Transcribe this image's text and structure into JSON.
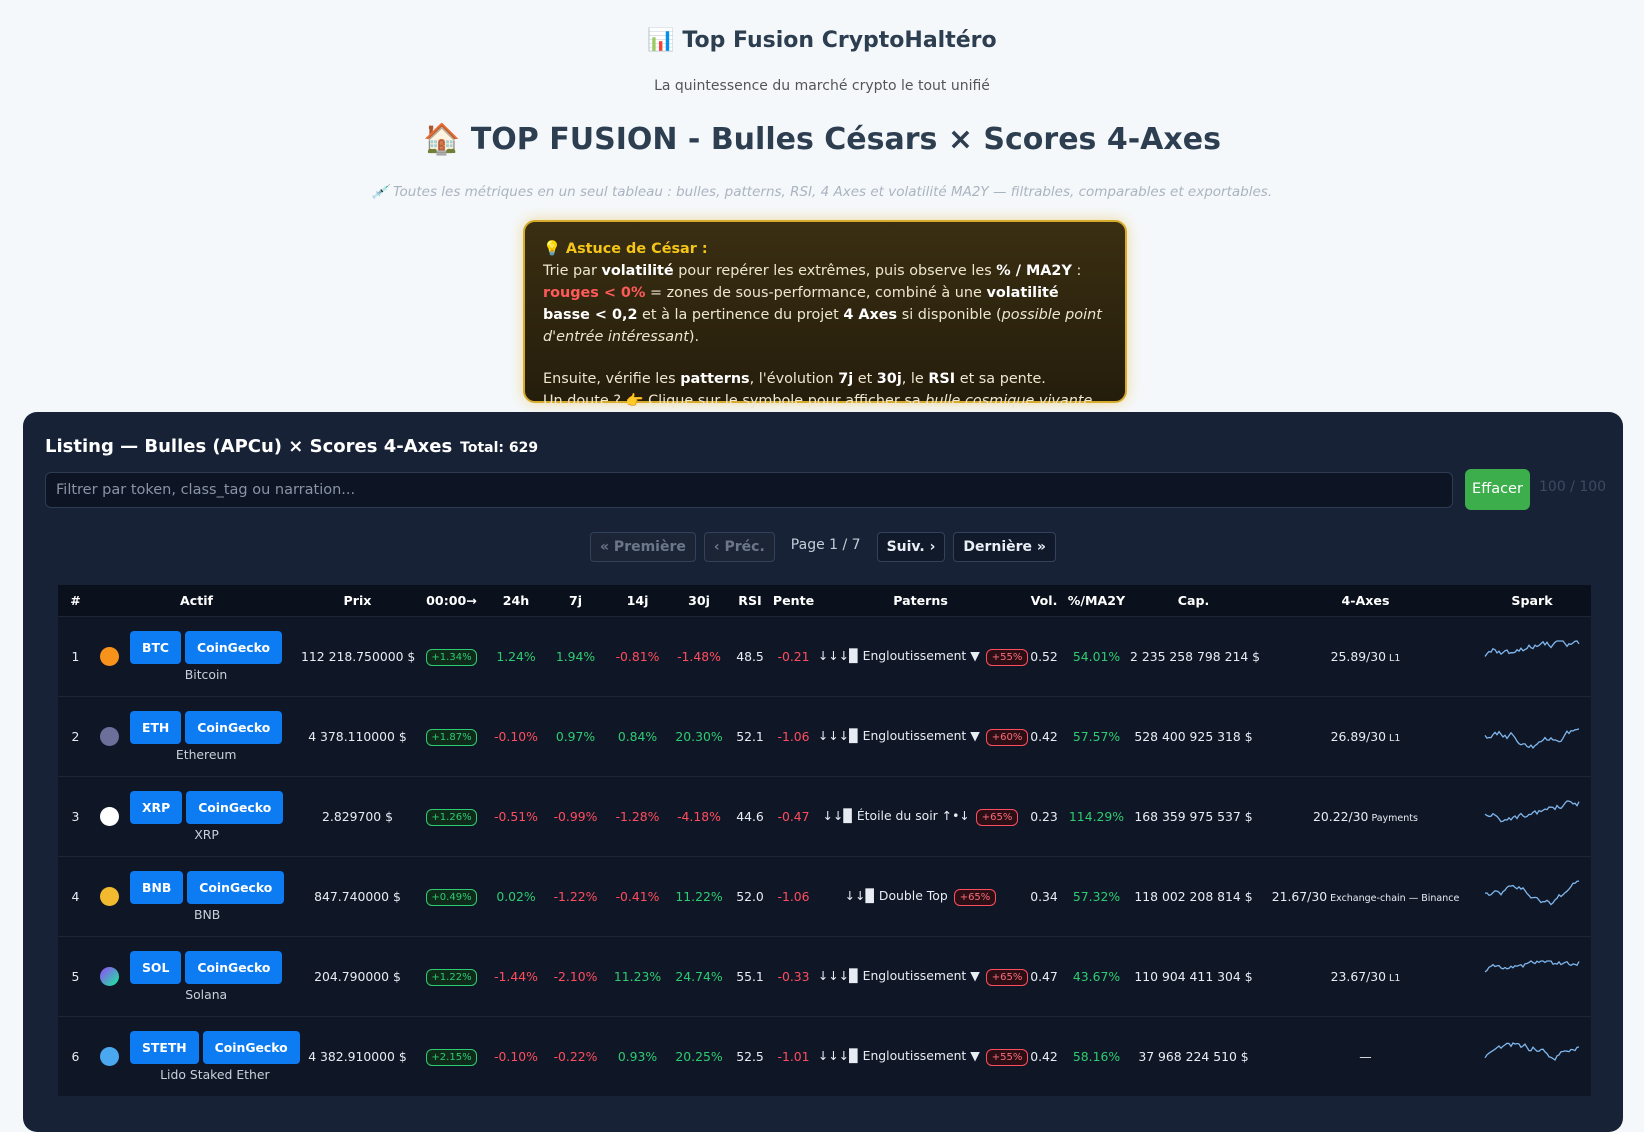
{
  "header": {
    "title": "📊 Top Fusion CryptoHaltéro",
    "subtitle": "La quintessence du marché crypto le tout unifié",
    "heading": "🏠 TOP FUSION - Bulles Césars × Scores 4-Axes",
    "tagline": "💉 Toutes les métriques en un seul tableau : bulles, patterns, RSI, 4 Axes et volatilité MA2Y — filtrables, comparables et exportables."
  },
  "tip": {
    "title": "💡 Astuce de César :",
    "line1": [
      "Trie par ",
      "volatilité",
      " pour repérer les extrêmes, puis observe les ",
      "% / MA2Y",
      " : ",
      "rouges < 0%",
      " = zones de sous-performance, combiné à une ",
      "volatilité basse < 0,2",
      " et à la pertinence du projet ",
      "4 Axes",
      " si disponible (",
      "possible point d'entrée intéressant",
      ")."
    ],
    "line2": [
      "Ensuite, vérifie les ",
      "patterns",
      ", l'évolution ",
      "7j",
      " et ",
      "30j",
      ", le ",
      "RSI",
      " et sa pente."
    ],
    "line3": [
      "Un doute ? 👉 Clique sur le symbole pour afficher sa ",
      "bulle cosmique vivante 🌌",
      "."
    ]
  },
  "panel": {
    "title": "Listing — Bulles (APCu) × Scores 4-Axes",
    "total": "Total: 629",
    "filter_placeholder": "Filtrer par token, class_tag ou narration...",
    "clear_button": "Effacer",
    "count": "100 / 100",
    "pagination": {
      "first": "« Première",
      "prev": "‹ Préc.",
      "page": "Page 1 / 7",
      "next": "Suiv. ›",
      "last": "Dernière »"
    }
  },
  "table": {
    "headers": [
      "#",
      "Actif",
      "Prix",
      "00:00→",
      "24h",
      "7j",
      "14j",
      "30j",
      "RSI",
      "Pente",
      "Paterns",
      "Vol.",
      "%/MA2Y",
      "Cap.",
      "4-Axes",
      "Spark"
    ],
    "rows": [
      {
        "rank": "1",
        "symbol": "BTC",
        "source": "CoinGecko",
        "name": "Bitcoin",
        "price": "112 218.750000 $",
        "since_midnight": "+1.34%",
        "h24": "1.24%",
        "d7": "1.94%",
        "d14": "-0.81%",
        "d30": "-1.48%",
        "rsi": "48.5",
        "slope": "-0.21",
        "pattern": "↓↓↓▉ Engloutissement ▼",
        "pattern_badge": "+55%",
        "vol": "0.52",
        "ma2y": "54.01%",
        "cap": "2 235 258 798 214 $",
        "axes": "25.89/30",
        "axes_tag": "L1"
      },
      {
        "rank": "2",
        "symbol": "ETH",
        "source": "CoinGecko",
        "name": "Ethereum",
        "price": "4 378.110000 $",
        "since_midnight": "+1.87%",
        "h24": "-0.10%",
        "d7": "0.97%",
        "d14": "0.84%",
        "d30": "20.30%",
        "rsi": "52.1",
        "slope": "-1.06",
        "pattern": "↓↓↓▉ Engloutissement ▼",
        "pattern_badge": "+60%",
        "vol": "0.42",
        "ma2y": "57.57%",
        "cap": "528 400 925 318 $",
        "axes": "26.89/30",
        "axes_tag": "L1"
      },
      {
        "rank": "3",
        "symbol": "XRP",
        "source": "CoinGecko",
        "name": "XRP",
        "price": "2.829700 $",
        "since_midnight": "+1.26%",
        "h24": "-0.51%",
        "d7": "-0.99%",
        "d14": "-1.28%",
        "d30": "-4.18%",
        "rsi": "44.6",
        "slope": "-0.47",
        "pattern": "↓↓▉ Étoile du soir ↑•↓",
        "pattern_badge": "+65%",
        "vol": "0.23",
        "ma2y": "114.29%",
        "cap": "168 359 975 537 $",
        "axes": "20.22/30",
        "axes_tag": "Payments"
      },
      {
        "rank": "4",
        "symbol": "BNB",
        "source": "CoinGecko",
        "name": "BNB",
        "price": "847.740000 $",
        "since_midnight": "+0.49%",
        "h24": "0.02%",
        "d7": "-1.22%",
        "d14": "-0.41%",
        "d30": "11.22%",
        "rsi": "52.0",
        "slope": "-1.06",
        "pattern": "↓↓▉ Double Top",
        "pattern_badge": "+65%",
        "vol": "0.34",
        "ma2y": "57.32%",
        "cap": "118 002 208 814 $",
        "axes": "21.67/30",
        "axes_tag": "Exchange-chain — Binance"
      },
      {
        "rank": "5",
        "symbol": "SOL",
        "source": "CoinGecko",
        "name": "Solana",
        "price": "204.790000 $",
        "since_midnight": "+1.22%",
        "h24": "-1.44%",
        "d7": "-2.10%",
        "d14": "11.23%",
        "d30": "24.74%",
        "rsi": "55.1",
        "slope": "-0.33",
        "pattern": "↓↓↓▉ Engloutissement ▼",
        "pattern_badge": "+65%",
        "vol": "0.47",
        "ma2y": "43.67%",
        "cap": "110 904 411 304 $",
        "axes": "23.67/30",
        "axes_tag": "L1"
      },
      {
        "rank": "6",
        "symbol": "STETH",
        "source": "CoinGecko",
        "name": "Lido Staked Ether",
        "price": "4 382.910000 $",
        "since_midnight": "+2.15%",
        "h24": "-0.10%",
        "d7": "-0.22%",
        "d14": "0.93%",
        "d30": "20.25%",
        "rsi": "52.5",
        "slope": "-1.01",
        "pattern": "↓↓↓▉ Engloutissement ▼",
        "pattern_badge": "+55%",
        "vol": "0.42",
        "ma2y": "58.16%",
        "cap": "37 968 224 510 $",
        "axes": "—"
      }
    ]
  }
}
